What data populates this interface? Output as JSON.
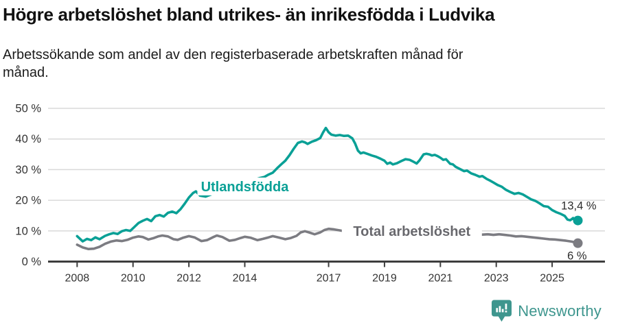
{
  "header": {
    "title": "Högre arbetslöshet bland utrikes- än inrikesfödda i Ludvika",
    "subtitle_line1": "Arbetssökande som andel av den registerbaserade arbetskraften månad för",
    "subtitle_line2": "månad."
  },
  "footer": {
    "brand": "Newsworthy",
    "brand_color": "#3E968E"
  },
  "chart_data": {
    "type": "line",
    "title": "Högre arbetslöshet bland utrikes- än inrikesfödda i Ludvika",
    "subtitle": "Arbetssökande som andel av den registerbaserade arbetskraften månad för månad.",
    "unit": "%",
    "xlim": [
      2006.96,
      2026.89
    ],
    "ylim": [
      0,
      50
    ],
    "grid": true,
    "grid_color": "#d9d9d9",
    "axis_color": "#3d3d3d",
    "axis_text_color": "#333333",
    "value_label_color": "#2b2b2b",
    "legend_position": "inline-labels",
    "yticks": [
      {
        "value": 0,
        "label": "0 %"
      },
      {
        "value": 10,
        "label": "10 %"
      },
      {
        "value": 20,
        "label": "20 %"
      },
      {
        "value": 30,
        "label": "30 %"
      },
      {
        "value": 40,
        "label": "40 %"
      },
      {
        "value": 50,
        "label": "50 %"
      }
    ],
    "xticks": [
      {
        "year": 2008,
        "label": "2008"
      },
      {
        "year": 2010,
        "label": "2010"
      },
      {
        "year": 2012,
        "label": "2012"
      },
      {
        "year": 2014,
        "label": "2014"
      },
      {
        "year": 2017,
        "label": "2017"
      },
      {
        "year": 2019,
        "label": "2019"
      },
      {
        "year": 2021,
        "label": "2021"
      },
      {
        "year": 2023,
        "label": "2023"
      },
      {
        "year": 2025,
        "label": "2025"
      }
    ],
    "series": [
      {
        "name": "Utlandsfödda",
        "color": "#0aa096",
        "label_color": "#0aa096",
        "label_pos": {
          "year": 2014.0,
          "value": 24.5
        },
        "end_label": "13,4 %",
        "end_value": 13.4,
        "points": [
          [
            2008.0,
            8.3
          ],
          [
            2008.2,
            6.6
          ],
          [
            2008.35,
            7.4
          ],
          [
            2008.5,
            7.0
          ],
          [
            2008.65,
            7.9
          ],
          [
            2008.8,
            7.3
          ],
          [
            2009.0,
            8.4
          ],
          [
            2009.15,
            8.9
          ],
          [
            2009.3,
            9.3
          ],
          [
            2009.45,
            9.0
          ],
          [
            2009.6,
            9.9
          ],
          [
            2009.75,
            10.3
          ],
          [
            2009.9,
            10.0
          ],
          [
            2010.05,
            11.3
          ],
          [
            2010.2,
            12.6
          ],
          [
            2010.35,
            13.3
          ],
          [
            2010.5,
            13.9
          ],
          [
            2010.65,
            13.2
          ],
          [
            2010.8,
            14.8
          ],
          [
            2010.95,
            15.2
          ],
          [
            2011.1,
            14.7
          ],
          [
            2011.25,
            15.9
          ],
          [
            2011.4,
            16.3
          ],
          [
            2011.55,
            15.8
          ],
          [
            2011.7,
            17.1
          ],
          [
            2011.85,
            18.9
          ],
          [
            2012.0,
            20.9
          ],
          [
            2012.15,
            22.4
          ],
          [
            2012.25,
            22.9
          ],
          [
            2012.4,
            21.5
          ],
          [
            2012.6,
            21.2
          ],
          [
            2012.8,
            21.9
          ],
          [
            2013.0,
            22.5
          ],
          [
            2013.2,
            23.0
          ],
          [
            2013.45,
            23.7
          ],
          [
            2013.7,
            24.6
          ],
          [
            2013.95,
            25.5
          ],
          [
            2014.2,
            26.3
          ],
          [
            2014.4,
            26.9
          ],
          [
            2014.55,
            27.3
          ],
          [
            2014.7,
            27.6
          ],
          [
            2014.85,
            28.4
          ],
          [
            2015.0,
            29.0
          ],
          [
            2015.15,
            30.4
          ],
          [
            2015.3,
            31.7
          ],
          [
            2015.45,
            32.9
          ],
          [
            2015.6,
            34.7
          ],
          [
            2015.75,
            36.8
          ],
          [
            2015.9,
            38.7
          ],
          [
            2016.05,
            39.2
          ],
          [
            2016.15,
            38.9
          ],
          [
            2016.25,
            38.4
          ],
          [
            2016.4,
            39.1
          ],
          [
            2016.55,
            39.6
          ],
          [
            2016.7,
            40.3
          ],
          [
            2016.8,
            42.1
          ],
          [
            2016.9,
            43.6
          ],
          [
            2017.0,
            42.2
          ],
          [
            2017.1,
            41.4
          ],
          [
            2017.25,
            41.1
          ],
          [
            2017.4,
            41.3
          ],
          [
            2017.55,
            41.0
          ],
          [
            2017.7,
            41.1
          ],
          [
            2017.85,
            40.2
          ],
          [
            2017.95,
            38.5
          ],
          [
            2018.05,
            36.2
          ],
          [
            2018.15,
            35.3
          ],
          [
            2018.25,
            35.6
          ],
          [
            2018.4,
            35.1
          ],
          [
            2018.55,
            34.6
          ],
          [
            2018.7,
            34.2
          ],
          [
            2018.85,
            33.6
          ],
          [
            2019.0,
            32.9
          ],
          [
            2019.1,
            31.9
          ],
          [
            2019.2,
            32.3
          ],
          [
            2019.3,
            31.7
          ],
          [
            2019.45,
            32.1
          ],
          [
            2019.6,
            32.8
          ],
          [
            2019.75,
            33.4
          ],
          [
            2019.9,
            33.2
          ],
          [
            2020.05,
            32.5
          ],
          [
            2020.15,
            32.0
          ],
          [
            2020.25,
            33.0
          ],
          [
            2020.4,
            35.0
          ],
          [
            2020.5,
            35.2
          ],
          [
            2020.6,
            35.0
          ],
          [
            2020.7,
            34.6
          ],
          [
            2020.8,
            34.8
          ],
          [
            2020.9,
            34.4
          ],
          [
            2021.0,
            33.9
          ],
          [
            2021.1,
            33.2
          ],
          [
            2021.2,
            33.4
          ],
          [
            2021.35,
            31.9
          ],
          [
            2021.45,
            31.7
          ],
          [
            2021.55,
            30.9
          ],
          [
            2021.7,
            30.2
          ],
          [
            2021.85,
            29.5
          ],
          [
            2021.95,
            29.7
          ],
          [
            2022.1,
            28.8
          ],
          [
            2022.25,
            28.3
          ],
          [
            2022.4,
            27.7
          ],
          [
            2022.5,
            27.9
          ],
          [
            2022.65,
            27.0
          ],
          [
            2022.8,
            26.3
          ],
          [
            2022.9,
            25.8
          ],
          [
            2023.05,
            25.0
          ],
          [
            2023.2,
            24.4
          ],
          [
            2023.35,
            23.4
          ],
          [
            2023.5,
            22.7
          ],
          [
            2023.65,
            22.1
          ],
          [
            2023.8,
            22.4
          ],
          [
            2023.95,
            21.9
          ],
          [
            2024.1,
            21.1
          ],
          [
            2024.25,
            20.3
          ],
          [
            2024.4,
            19.8
          ],
          [
            2024.55,
            19.0
          ],
          [
            2024.7,
            18.1
          ],
          [
            2024.85,
            17.9
          ],
          [
            2025.0,
            16.8
          ],
          [
            2025.15,
            16.1
          ],
          [
            2025.3,
            15.6
          ],
          [
            2025.45,
            14.9
          ],
          [
            2025.55,
            13.7
          ],
          [
            2025.65,
            13.5
          ],
          [
            2025.75,
            14.2
          ],
          [
            2025.85,
            12.8
          ],
          [
            2025.92,
            13.4
          ]
        ]
      },
      {
        "name": "Total arbetslöshet",
        "color": "#7c7c82",
        "label_color": "#68686d",
        "label_pos": {
          "year": 2019.98,
          "value": 9.95
        },
        "end_label": "6 %",
        "end_value": 6.0,
        "points": [
          [
            2008.0,
            5.5
          ],
          [
            2008.2,
            4.6
          ],
          [
            2008.4,
            4.1
          ],
          [
            2008.6,
            4.2
          ],
          [
            2008.8,
            4.8
          ],
          [
            2009.0,
            5.8
          ],
          [
            2009.2,
            6.5
          ],
          [
            2009.4,
            6.9
          ],
          [
            2009.6,
            6.7
          ],
          [
            2009.8,
            7.1
          ],
          [
            2010.0,
            7.8
          ],
          [
            2010.2,
            8.2
          ],
          [
            2010.35,
            8.0
          ],
          [
            2010.55,
            7.2
          ],
          [
            2010.75,
            7.7
          ],
          [
            2010.9,
            8.2
          ],
          [
            2011.05,
            8.5
          ],
          [
            2011.25,
            8.2
          ],
          [
            2011.45,
            7.3
          ],
          [
            2011.6,
            7.1
          ],
          [
            2011.8,
            7.8
          ],
          [
            2012.0,
            8.3
          ],
          [
            2012.2,
            7.9
          ],
          [
            2012.45,
            6.7
          ],
          [
            2012.65,
            7.0
          ],
          [
            2012.85,
            7.9
          ],
          [
            2013.0,
            8.5
          ],
          [
            2013.2,
            8.0
          ],
          [
            2013.45,
            6.8
          ],
          [
            2013.65,
            7.1
          ],
          [
            2013.85,
            7.7
          ],
          [
            2014.0,
            8.1
          ],
          [
            2014.2,
            7.8
          ],
          [
            2014.45,
            7.0
          ],
          [
            2014.65,
            7.4
          ],
          [
            2014.85,
            7.9
          ],
          [
            2015.0,
            8.3
          ],
          [
            2015.2,
            7.9
          ],
          [
            2015.45,
            7.3
          ],
          [
            2015.65,
            7.7
          ],
          [
            2015.85,
            8.4
          ],
          [
            2016.0,
            9.5
          ],
          [
            2016.15,
            9.9
          ],
          [
            2016.3,
            9.5
          ],
          [
            2016.5,
            8.9
          ],
          [
            2016.7,
            9.5
          ],
          [
            2016.85,
            10.3
          ],
          [
            2017.0,
            10.7
          ],
          [
            2017.2,
            10.5
          ],
          [
            2017.45,
            10.1
          ],
          [
            2017.7,
            9.9
          ],
          [
            2018.0,
            9.7
          ],
          [
            2018.3,
            9.4
          ],
          [
            2018.6,
            9.2
          ],
          [
            2018.9,
            9.3
          ],
          [
            2019.2,
            9.1
          ],
          [
            2019.5,
            9.0
          ],
          [
            2019.8,
            9.2
          ],
          [
            2020.1,
            9.6
          ],
          [
            2020.4,
            9.9
          ],
          [
            2020.7,
            9.8
          ],
          [
            2021.0,
            9.6
          ],
          [
            2021.3,
            9.3
          ],
          [
            2021.6,
            9.0
          ],
          [
            2021.9,
            8.9
          ],
          [
            2022.2,
            8.8
          ],
          [
            2022.5,
            8.8
          ],
          [
            2022.7,
            8.9
          ],
          [
            2022.9,
            8.7
          ],
          [
            2023.1,
            8.9
          ],
          [
            2023.3,
            8.7
          ],
          [
            2023.5,
            8.5
          ],
          [
            2023.7,
            8.2
          ],
          [
            2023.9,
            8.3
          ],
          [
            2024.1,
            8.1
          ],
          [
            2024.3,
            7.9
          ],
          [
            2024.5,
            7.7
          ],
          [
            2024.7,
            7.5
          ],
          [
            2024.9,
            7.3
          ],
          [
            2025.1,
            7.2
          ],
          [
            2025.3,
            7.0
          ],
          [
            2025.5,
            6.8
          ],
          [
            2025.7,
            6.5
          ],
          [
            2025.85,
            6.2
          ],
          [
            2025.92,
            6.0
          ]
        ]
      }
    ]
  }
}
